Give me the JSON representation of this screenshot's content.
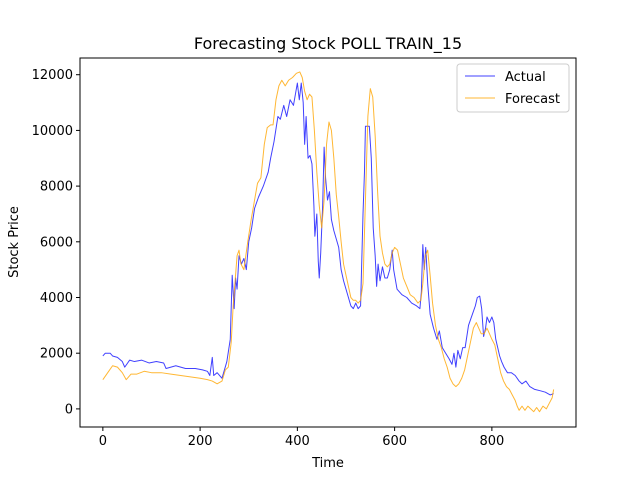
{
  "chart_data": {
    "type": "line",
    "title": "Forecasting Stock POLL TRAIN_15",
    "xlabel": "Time",
    "ylabel": "Stock Price",
    "xlim": [
      -47,
      973
    ],
    "ylim": [
      -650,
      12600
    ],
    "xticks": [
      0,
      200,
      400,
      600,
      800
    ],
    "yticks": [
      0,
      2000,
      4000,
      6000,
      8000,
      10000,
      12000
    ],
    "grid": false,
    "legend_position": "top-right",
    "series": [
      {
        "name": "Actual",
        "color": "#0000ff",
        "points": [
          [
            0,
            1900
          ],
          [
            5,
            2000
          ],
          [
            15,
            2000
          ],
          [
            20,
            1900
          ],
          [
            30,
            1850
          ],
          [
            40,
            1700
          ],
          [
            45,
            1500
          ],
          [
            55,
            1750
          ],
          [
            65,
            1700
          ],
          [
            80,
            1750
          ],
          [
            95,
            1650
          ],
          [
            110,
            1700
          ],
          [
            125,
            1650
          ],
          [
            130,
            1450
          ],
          [
            150,
            1550
          ],
          [
            170,
            1450
          ],
          [
            190,
            1450
          ],
          [
            205,
            1400
          ],
          [
            215,
            1350
          ],
          [
            220,
            1200
          ],
          [
            225,
            1850
          ],
          [
            228,
            1200
          ],
          [
            235,
            1300
          ],
          [
            245,
            1100
          ],
          [
            255,
            1700
          ],
          [
            262,
            2500
          ],
          [
            266,
            4800
          ],
          [
            270,
            3600
          ],
          [
            273,
            4700
          ],
          [
            276,
            4300
          ],
          [
            280,
            5500
          ],
          [
            285,
            5200
          ],
          [
            290,
            5400
          ],
          [
            295,
            5000
          ],
          [
            300,
            6000
          ],
          [
            306,
            6500
          ],
          [
            312,
            7200
          ],
          [
            320,
            7600
          ],
          [
            330,
            8000
          ],
          [
            340,
            8500
          ],
          [
            345,
            9000
          ],
          [
            352,
            9600
          ],
          [
            360,
            10500
          ],
          [
            365,
            10400
          ],
          [
            372,
            10900
          ],
          [
            378,
            10500
          ],
          [
            385,
            11100
          ],
          [
            392,
            10900
          ],
          [
            396,
            11300
          ],
          [
            400,
            11700
          ],
          [
            404,
            11100
          ],
          [
            408,
            11700
          ],
          [
            412,
            11000
          ],
          [
            415,
            9500
          ],
          [
            418,
            10500
          ],
          [
            422,
            9000
          ],
          [
            426,
            9100
          ],
          [
            430,
            8800
          ],
          [
            434,
            7300
          ],
          [
            436,
            6200
          ],
          [
            440,
            7000
          ],
          [
            443,
            5300
          ],
          [
            445,
            4700
          ],
          [
            448,
            5600
          ],
          [
            452,
            7300
          ],
          [
            455,
            9400
          ],
          [
            458,
            8300
          ],
          [
            462,
            7500
          ],
          [
            466,
            7800
          ],
          [
            470,
            6800
          ],
          [
            475,
            6400
          ],
          [
            480,
            6100
          ],
          [
            485,
            5800
          ],
          [
            490,
            5000
          ],
          [
            495,
            4600
          ],
          [
            500,
            4300
          ],
          [
            505,
            4000
          ],
          [
            510,
            3700
          ],
          [
            515,
            3600
          ],
          [
            520,
            3800
          ],
          [
            525,
            3600
          ],
          [
            530,
            3700
          ],
          [
            535,
            7000
          ],
          [
            538,
            8500
          ],
          [
            540,
            10150
          ],
          [
            548,
            10150
          ],
          [
            552,
            9000
          ],
          [
            556,
            6500
          ],
          [
            560,
            5500
          ],
          [
            563,
            4400
          ],
          [
            566,
            5200
          ],
          [
            570,
            4600
          ],
          [
            575,
            5100
          ],
          [
            580,
            4700
          ],
          [
            585,
            4700
          ],
          [
            590,
            5000
          ],
          [
            595,
            5700
          ],
          [
            598,
            5000
          ],
          [
            605,
            4300
          ],
          [
            615,
            4100
          ],
          [
            625,
            4000
          ],
          [
            635,
            3800
          ],
          [
            645,
            3700
          ],
          [
            652,
            3600
          ],
          [
            655,
            4200
          ],
          [
            658,
            5900
          ],
          [
            661,
            5000
          ],
          [
            664,
            5800
          ],
          [
            668,
            4500
          ],
          [
            673,
            3400
          ],
          [
            680,
            2900
          ],
          [
            687,
            2500
          ],
          [
            692,
            2800
          ],
          [
            698,
            2200
          ],
          [
            705,
            2000
          ],
          [
            712,
            1800
          ],
          [
            718,
            1600
          ],
          [
            722,
            2000
          ],
          [
            726,
            1500
          ],
          [
            730,
            2100
          ],
          [
            735,
            1800
          ],
          [
            740,
            2200
          ],
          [
            745,
            2200
          ],
          [
            752,
            3000
          ],
          [
            760,
            3400
          ],
          [
            766,
            3700
          ],
          [
            770,
            4000
          ],
          [
            775,
            4050
          ],
          [
            779,
            3600
          ],
          [
            783,
            2600
          ],
          [
            787,
            2900
          ],
          [
            790,
            3300
          ],
          [
            795,
            3100
          ],
          [
            800,
            3300
          ],
          [
            804,
            3100
          ],
          [
            808,
            2500
          ],
          [
            812,
            2200
          ],
          [
            816,
            1900
          ],
          [
            820,
            1700
          ],
          [
            825,
            1500
          ],
          [
            832,
            1300
          ],
          [
            840,
            1300
          ],
          [
            848,
            1200
          ],
          [
            856,
            1000
          ],
          [
            862,
            900
          ],
          [
            870,
            1000
          ],
          [
            878,
            800
          ],
          [
            888,
            700
          ],
          [
            900,
            650
          ],
          [
            910,
            600
          ],
          [
            920,
            500
          ],
          [
            927,
            550
          ]
        ]
      },
      {
        "name": "Forecast",
        "color": "#ffa500",
        "points": [
          [
            0,
            1050
          ],
          [
            10,
            1300
          ],
          [
            20,
            1550
          ],
          [
            30,
            1500
          ],
          [
            40,
            1300
          ],
          [
            48,
            1050
          ],
          [
            58,
            1250
          ],
          [
            70,
            1250
          ],
          [
            85,
            1350
          ],
          [
            100,
            1300
          ],
          [
            120,
            1300
          ],
          [
            140,
            1250
          ],
          [
            160,
            1200
          ],
          [
            180,
            1150
          ],
          [
            200,
            1100
          ],
          [
            215,
            1050
          ],
          [
            225,
            1000
          ],
          [
            235,
            900
          ],
          [
            245,
            1000
          ],
          [
            252,
            1400
          ],
          [
            258,
            1500
          ],
          [
            264,
            2400
          ],
          [
            268,
            3700
          ],
          [
            272,
            4600
          ],
          [
            276,
            5500
          ],
          [
            280,
            5700
          ],
          [
            284,
            5200
          ],
          [
            290,
            5000
          ],
          [
            298,
            6000
          ],
          [
            305,
            6800
          ],
          [
            312,
            7500
          ],
          [
            318,
            8100
          ],
          [
            325,
            8300
          ],
          [
            332,
            9500
          ],
          [
            338,
            10100
          ],
          [
            345,
            10200
          ],
          [
            350,
            10200
          ],
          [
            356,
            11100
          ],
          [
            362,
            11600
          ],
          [
            368,
            11800
          ],
          [
            375,
            11600
          ],
          [
            382,
            11800
          ],
          [
            390,
            11900
          ],
          [
            398,
            12050
          ],
          [
            405,
            12100
          ],
          [
            410,
            11900
          ],
          [
            415,
            11400
          ],
          [
            420,
            11100
          ],
          [
            425,
            11300
          ],
          [
            430,
            11200
          ],
          [
            435,
            10000
          ],
          [
            440,
            8500
          ],
          [
            445,
            7300
          ],
          [
            450,
            6500
          ],
          [
            455,
            7500
          ],
          [
            460,
            9500
          ],
          [
            465,
            10300
          ],
          [
            470,
            10000
          ],
          [
            475,
            9000
          ],
          [
            480,
            7700
          ],
          [
            485,
            6900
          ],
          [
            490,
            6000
          ],
          [
            495,
            5200
          ],
          [
            500,
            4800
          ],
          [
            505,
            4400
          ],
          [
            510,
            4000
          ],
          [
            515,
            3900
          ],
          [
            520,
            3900
          ],
          [
            525,
            3800
          ],
          [
            530,
            3900
          ],
          [
            535,
            4500
          ],
          [
            540,
            7500
          ],
          [
            545,
            10500
          ],
          [
            550,
            11500
          ],
          [
            555,
            11200
          ],
          [
            560,
            9800
          ],
          [
            565,
            7800
          ],
          [
            570,
            6200
          ],
          [
            575,
            5600
          ],
          [
            580,
            5200
          ],
          [
            585,
            5100
          ],
          [
            590,
            5200
          ],
          [
            595,
            5600
          ],
          [
            600,
            5800
          ],
          [
            606,
            5700
          ],
          [
            612,
            5200
          ],
          [
            618,
            4700
          ],
          [
            625,
            4400
          ],
          [
            632,
            4100
          ],
          [
            640,
            4000
          ],
          [
            648,
            3800
          ],
          [
            654,
            3900
          ],
          [
            658,
            4500
          ],
          [
            663,
            5500
          ],
          [
            668,
            5700
          ],
          [
            673,
            4800
          ],
          [
            678,
            3800
          ],
          [
            684,
            3000
          ],
          [
            690,
            2500
          ],
          [
            696,
            2200
          ],
          [
            702,
            1800
          ],
          [
            708,
            1500
          ],
          [
            714,
            1100
          ],
          [
            720,
            900
          ],
          [
            726,
            800
          ],
          [
            732,
            900
          ],
          [
            738,
            1100
          ],
          [
            744,
            1400
          ],
          [
            750,
            1900
          ],
          [
            756,
            2400
          ],
          [
            762,
            2900
          ],
          [
            768,
            3100
          ],
          [
            773,
            2900
          ],
          [
            778,
            2700
          ],
          [
            784,
            2700
          ],
          [
            790,
            2900
          ],
          [
            795,
            2700
          ],
          [
            800,
            2500
          ],
          [
            806,
            2300
          ],
          [
            812,
            1800
          ],
          [
            818,
            1300
          ],
          [
            824,
            1000
          ],
          [
            830,
            800
          ],
          [
            836,
            700
          ],
          [
            842,
            500
          ],
          [
            848,
            300
          ],
          [
            852,
            100
          ],
          [
            856,
            -50
          ],
          [
            862,
            100
          ],
          [
            868,
            -50
          ],
          [
            874,
            100
          ],
          [
            880,
            0
          ],
          [
            886,
            -100
          ],
          [
            892,
            50
          ],
          [
            898,
            -100
          ],
          [
            905,
            100
          ],
          [
            912,
            0
          ],
          [
            918,
            200
          ],
          [
            924,
            400
          ],
          [
            927,
            700
          ]
        ]
      }
    ]
  }
}
